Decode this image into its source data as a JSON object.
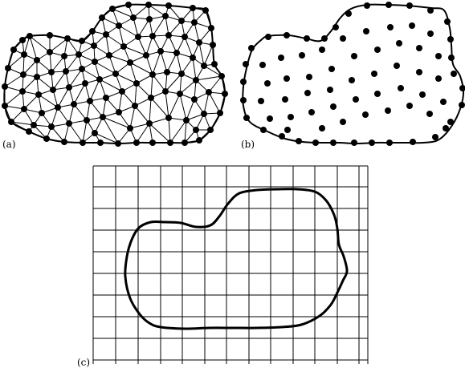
{
  "figure": {
    "panels": [
      {
        "id": "a",
        "label": "(a)"
      },
      {
        "id": "b",
        "label": "(b)"
      },
      {
        "id": "c",
        "label": "(c)"
      }
    ]
  },
  "colors": {
    "ink": "#000000",
    "background": "#ffffff"
  }
}
